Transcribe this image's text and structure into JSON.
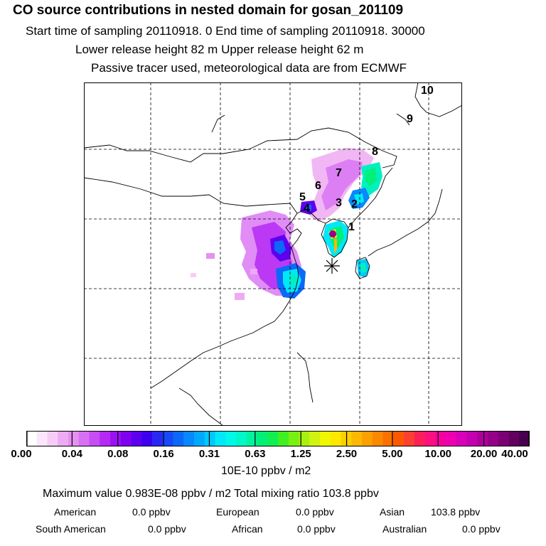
{
  "header": {
    "title": "CO  source contributions in nested domain for gosan_201109",
    "start_end": "Start time of sampling 20110918.     0     End time of sampling 20110918. 30000",
    "release": "Lower release height   82 m          Upper release height   62 m",
    "tracer": "Passive tracer used, meteorological data are from ECMWF"
  },
  "map": {
    "trajectory_labels": [
      "1",
      "2",
      "3",
      "4",
      "5",
      "6",
      "7",
      "8",
      "9",
      "10"
    ],
    "receptor_marker": "gosan-asterisk"
  },
  "colorbar": {
    "tick_labels": [
      "0.00",
      "0.04",
      "0.08",
      "0.16",
      "0.31",
      "0.63",
      "1.25",
      "2.50",
      "5.00",
      "10.00",
      "20.00",
      "40.00"
    ],
    "colors": [
      "#ffffff",
      "#fce6fc",
      "#f6ccf6",
      "#eeaaf2",
      "#e690f0",
      "#d870f4",
      "#c64cf4",
      "#b42af4",
      "#9c10f4",
      "#8000f0",
      "#5c00f0",
      "#3c00f0",
      "#2828f4",
      "#1848f8",
      "#0c68f8",
      "#0888fc",
      "#00a8fc",
      "#00c8fc",
      "#00e8f8",
      "#00f8e8",
      "#00f8c8",
      "#00f4a0",
      "#00f078",
      "#10f050",
      "#40f020",
      "#78f010",
      "#a8f010",
      "#d0f410",
      "#f0f800",
      "#fce800",
      "#fcd000",
      "#fcb800",
      "#fca000",
      "#fc8800",
      "#fc7000",
      "#fc5800",
      "#fc4030",
      "#fc2058",
      "#fc1080",
      "#f800a0",
      "#ec00b0",
      "#d800b8",
      "#c400b0",
      "#ae009c",
      "#960088",
      "#7c0074",
      "#620060",
      "#48004c"
    ],
    "units": "10E-10 ppbv / m2"
  },
  "stats": {
    "max_line": "Maximum value  0.983E-08 ppbv / m2      Total mixing ratio      103.8 ppbv",
    "region_line1": [
      {
        "label": "American",
        "value": "0.0 ppbv"
      },
      {
        "label": "European",
        "value": "0.0 ppbv"
      },
      {
        "label": "Asian",
        "value": "103.8 ppbv"
      }
    ],
    "region_line2": [
      {
        "label": "South American",
        "value": "0.0 ppbv"
      },
      {
        "label": "African",
        "value": "0.0 ppbv"
      },
      {
        "label": "Australian",
        "value": "0.0 ppbv"
      }
    ]
  }
}
